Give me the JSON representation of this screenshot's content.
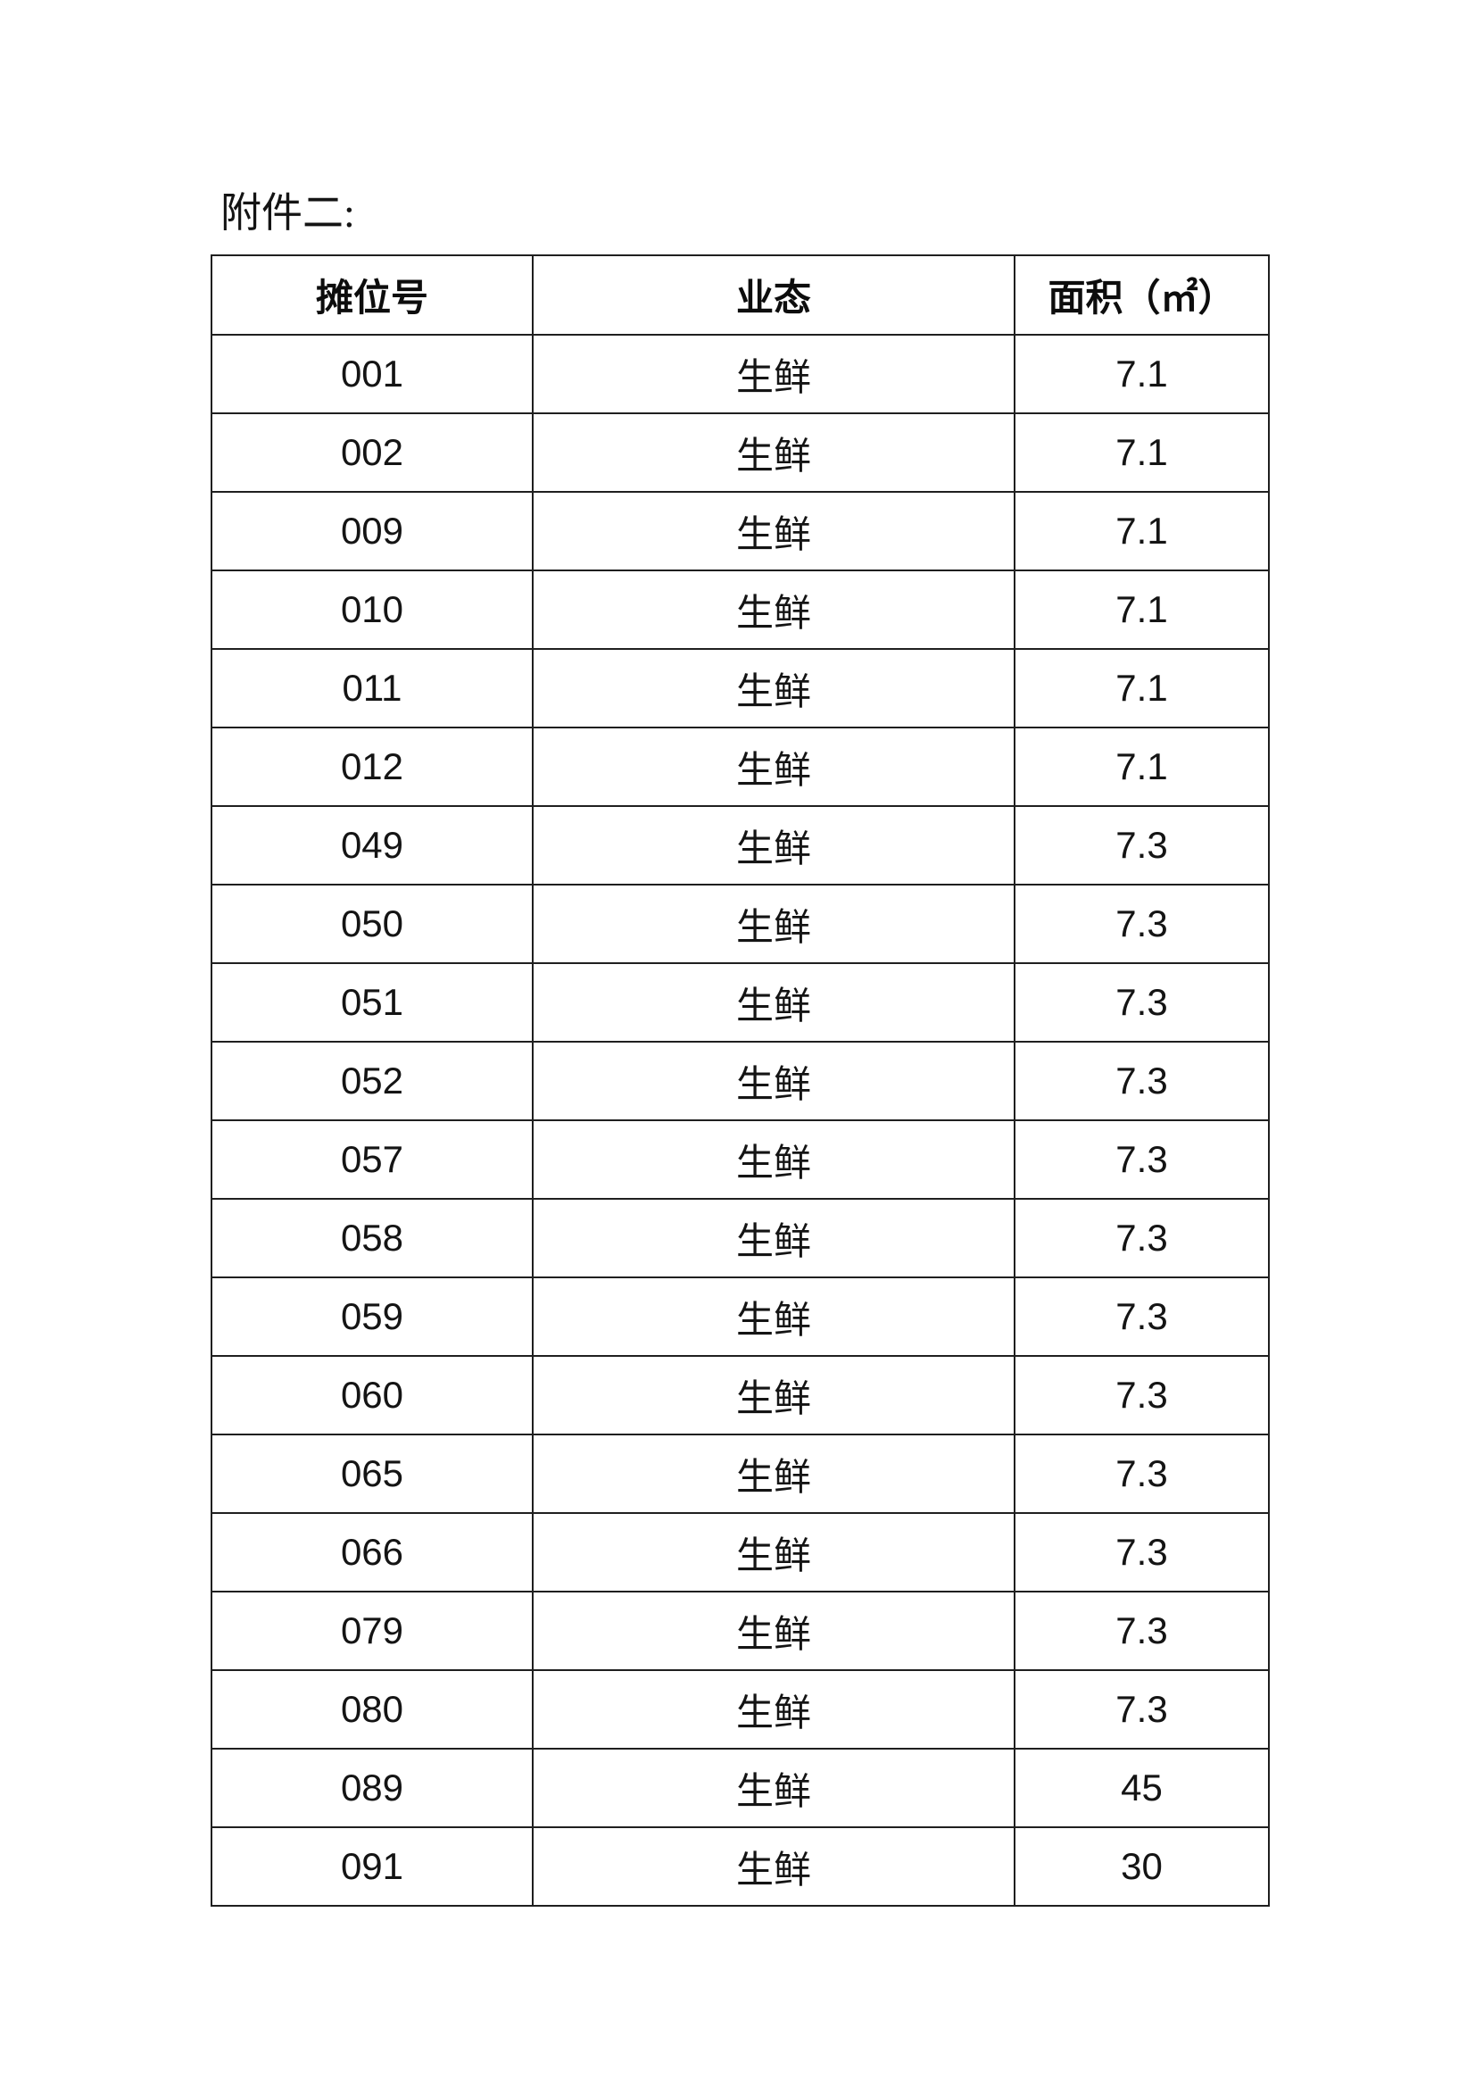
{
  "page": {
    "title": "附件二:"
  },
  "table": {
    "headers": {
      "stall": "摊位号",
      "type": "业态",
      "area": "面积（㎡）"
    },
    "rows": [
      {
        "stall": "001",
        "type": "生鲜",
        "area": "7.1"
      },
      {
        "stall": "002",
        "type": "生鲜",
        "area": "7.1"
      },
      {
        "stall": "009",
        "type": "生鲜",
        "area": "7.1"
      },
      {
        "stall": "010",
        "type": "生鲜",
        "area": "7.1"
      },
      {
        "stall": "011",
        "type": "生鲜",
        "area": "7.1"
      },
      {
        "stall": "012",
        "type": "生鲜",
        "area": "7.1"
      },
      {
        "stall": "049",
        "type": "生鲜",
        "area": "7.3"
      },
      {
        "stall": "050",
        "type": "生鲜",
        "area": "7.3"
      },
      {
        "stall": "051",
        "type": "生鲜",
        "area": "7.3"
      },
      {
        "stall": "052",
        "type": "生鲜",
        "area": "7.3"
      },
      {
        "stall": "057",
        "type": "生鲜",
        "area": "7.3"
      },
      {
        "stall": "058",
        "type": "生鲜",
        "area": "7.3"
      },
      {
        "stall": "059",
        "type": "生鲜",
        "area": "7.3"
      },
      {
        "stall": "060",
        "type": "生鲜",
        "area": "7.3"
      },
      {
        "stall": "065",
        "type": "生鲜",
        "area": "7.3"
      },
      {
        "stall": "066",
        "type": "生鲜",
        "area": "7.3"
      },
      {
        "stall": "079",
        "type": "生鲜",
        "area": "7.3"
      },
      {
        "stall": "080",
        "type": "生鲜",
        "area": "7.3"
      },
      {
        "stall": "089",
        "type": "生鲜",
        "area": "45"
      },
      {
        "stall": "091",
        "type": "生鲜",
        "area": "30"
      }
    ]
  }
}
